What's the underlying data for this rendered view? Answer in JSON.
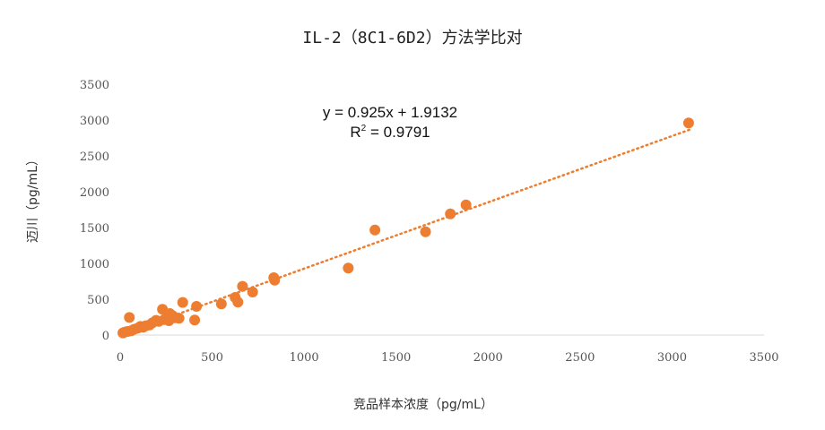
{
  "chart_data": {
    "type": "scatter",
    "title": "IL-2（8C1-6D2）方法学比对",
    "xlabel": "竞品样本浓度（pg/mL）",
    "ylabel": "迈川（pg/mL）",
    "xlim": [
      0,
      3500
    ],
    "ylim": [
      0,
      3500
    ],
    "x_ticks": [
      0,
      500,
      1000,
      1500,
      2000,
      2500,
      3000,
      3500
    ],
    "y_ticks": [
      0,
      500,
      1000,
      1500,
      2000,
      2500,
      3000,
      3500
    ],
    "grid": false,
    "point_color": "#ED7D31",
    "trendline": {
      "type": "linear",
      "slope": 0.925,
      "intercept": 1.9132,
      "style": "dotted",
      "x_range": [
        10,
        3100
      ],
      "equation_label": "y = 0.925x + 1.9132",
      "r2_label_prefix": "R",
      "r2_label_sup": "2",
      "r2_label_suffix": " = 0.9791"
    },
    "points": [
      {
        "x": 15,
        "y": 30
      },
      {
        "x": 25,
        "y": 40
      },
      {
        "x": 40,
        "y": 50
      },
      {
        "x": 50,
        "y": 245
      },
      {
        "x": 60,
        "y": 60
      },
      {
        "x": 75,
        "y": 80
      },
      {
        "x": 95,
        "y": 95
      },
      {
        "x": 110,
        "y": 120
      },
      {
        "x": 125,
        "y": 110
      },
      {
        "x": 140,
        "y": 130
      },
      {
        "x": 160,
        "y": 140
      },
      {
        "x": 175,
        "y": 170
      },
      {
        "x": 195,
        "y": 205
      },
      {
        "x": 210,
        "y": 190
      },
      {
        "x": 230,
        "y": 360
      },
      {
        "x": 240,
        "y": 215
      },
      {
        "x": 255,
        "y": 250
      },
      {
        "x": 265,
        "y": 200
      },
      {
        "x": 270,
        "y": 300
      },
      {
        "x": 285,
        "y": 270
      },
      {
        "x": 300,
        "y": 240
      },
      {
        "x": 320,
        "y": 235
      },
      {
        "x": 340,
        "y": 455
      },
      {
        "x": 405,
        "y": 210
      },
      {
        "x": 415,
        "y": 400
      },
      {
        "x": 550,
        "y": 435
      },
      {
        "x": 625,
        "y": 525
      },
      {
        "x": 640,
        "y": 460
      },
      {
        "x": 665,
        "y": 680
      },
      {
        "x": 720,
        "y": 600
      },
      {
        "x": 835,
        "y": 800
      },
      {
        "x": 840,
        "y": 765
      },
      {
        "x": 1240,
        "y": 935
      },
      {
        "x": 1385,
        "y": 1465
      },
      {
        "x": 1660,
        "y": 1440
      },
      {
        "x": 1795,
        "y": 1690
      },
      {
        "x": 1880,
        "y": 1815
      },
      {
        "x": 3090,
        "y": 2960
      }
    ]
  }
}
